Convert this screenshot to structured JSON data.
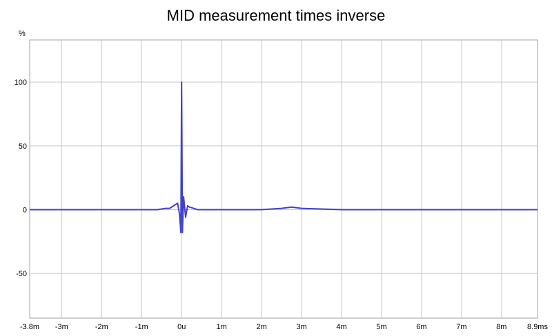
{
  "chart_data": {
    "type": "line",
    "title": "MID measurement times inverse",
    "xlabel": "",
    "ylabel": "%",
    "x_unit": "ms",
    "xlim": [
      -3.8,
      8.9
    ],
    "ylim": [
      -85,
      133
    ],
    "x_ticks": [
      {
        "value": -3.8,
        "label": "-3.8m"
      },
      {
        "value": -3,
        "label": "-3m"
      },
      {
        "value": -2,
        "label": "-2m"
      },
      {
        "value": -1,
        "label": "-1m"
      },
      {
        "value": 0,
        "label": "0u"
      },
      {
        "value": 1,
        "label": "1m"
      },
      {
        "value": 2,
        "label": "2m"
      },
      {
        "value": 3,
        "label": "3m"
      },
      {
        "value": 4,
        "label": "4m"
      },
      {
        "value": 5,
        "label": "5m"
      },
      {
        "value": 6,
        "label": "6m"
      },
      {
        "value": 7,
        "label": "7m"
      },
      {
        "value": 8,
        "label": "8m"
      },
      {
        "value": 8.9,
        "label": "8.9ms"
      }
    ],
    "y_ticks": [
      {
        "value": 100,
        "label": "100"
      },
      {
        "value": 50,
        "label": "50"
      },
      {
        "value": 0,
        "label": "0"
      },
      {
        "value": -50,
        "label": "-50"
      }
    ],
    "grid": true,
    "line_color": "#4040c8",
    "series": [
      {
        "x": [
          -3.8,
          -3.0,
          -2.0,
          -1.0,
          -0.6,
          -0.4,
          -0.3,
          -0.2,
          -0.1,
          -0.05,
          -0.02,
          0.0,
          0.02,
          0.05,
          0.1,
          0.15,
          0.2,
          0.3,
          0.4,
          0.6,
          1.0,
          2.0,
          2.5,
          2.75,
          3.0,
          4.0,
          5.0,
          6.0,
          7.0,
          8.0,
          8.9
        ],
        "y": [
          0,
          0,
          0,
          0,
          0,
          1,
          1,
          3,
          5,
          -4,
          -18,
          100,
          -18,
          10,
          -6,
          3,
          2,
          1,
          0,
          0,
          0,
          0,
          1,
          2,
          1,
          0,
          0,
          0,
          0,
          0,
          0
        ]
      }
    ]
  }
}
